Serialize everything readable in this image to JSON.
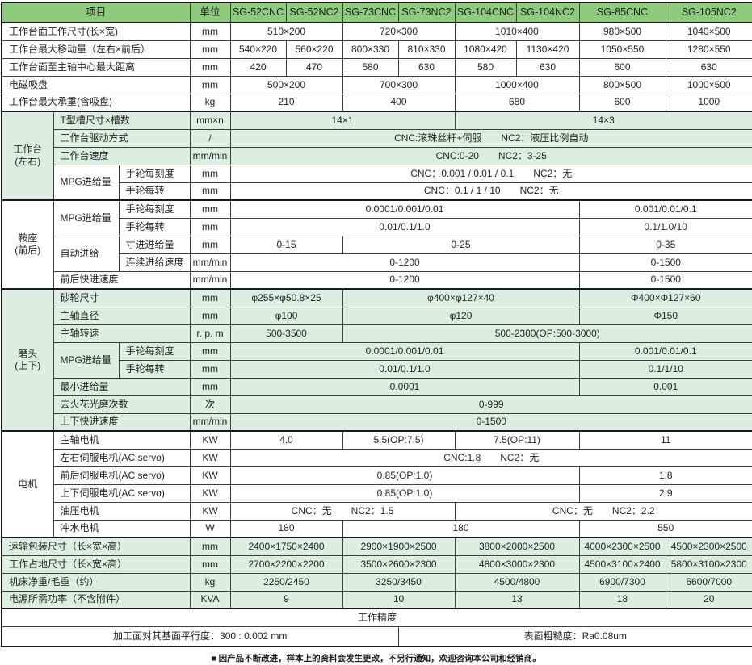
{
  "colors": {
    "header_green": "#8ecb7d",
    "row_light_green": "#dceee3",
    "row_white": "#ffffff",
    "border_dark": "#3f3f3f",
    "border_heavy": "#181818"
  },
  "table": {
    "header": [
      {
        "t": "项目",
        "cs": 3
      },
      {
        "t": "单位"
      },
      {
        "t": "SG-52CNC"
      },
      {
        "t": "SG-52NC2"
      },
      {
        "t": "SG-73CNC"
      },
      {
        "t": "SG-73NC2"
      },
      {
        "t": "SG-104CNC"
      },
      {
        "t": "SG-104NC2"
      },
      {
        "t": "SG-85CNC"
      },
      {
        "t": "SG-105NC2"
      }
    ],
    "rows": [
      {
        "bg": "w",
        "cells": [
          {
            "t": "工作台面工作尺寸(长×宽)",
            "cs": 3,
            "al": "l"
          },
          {
            "t": "mm",
            "n": "unit-cell"
          },
          {
            "t": "510×200",
            "cs": 2
          },
          {
            "t": "720×300",
            "cs": 2
          },
          {
            "t": "1010×400",
            "cs": 2
          },
          {
            "t": "980×500"
          },
          {
            "t": "1040×500"
          }
        ]
      },
      {
        "bg": "w",
        "cells": [
          {
            "t": "工作台最大移动量（左右×前后）",
            "cs": 3,
            "al": "l"
          },
          {
            "t": "mm",
            "n": "unit-cell"
          },
          {
            "t": "540×220"
          },
          {
            "t": "560×220"
          },
          {
            "t": "800×330"
          },
          {
            "t": "810×330"
          },
          {
            "t": "1080×420"
          },
          {
            "t": "1130×420"
          },
          {
            "t": "1050×550"
          },
          {
            "t": "1280×550"
          }
        ]
      },
      {
        "bg": "w",
        "cells": [
          {
            "t": "工作台面至主轴中心最大距离",
            "cs": 3,
            "al": "l"
          },
          {
            "t": "mm",
            "n": "unit-cell"
          },
          {
            "t": "420"
          },
          {
            "t": "470"
          },
          {
            "t": "580"
          },
          {
            "t": "630"
          },
          {
            "t": "580"
          },
          {
            "t": "630"
          },
          {
            "t": "600"
          },
          {
            "t": "630"
          }
        ]
      },
      {
        "bg": "w",
        "cells": [
          {
            "t": "电磁吸盘",
            "cs": 3,
            "al": "l"
          },
          {
            "t": "mm",
            "n": "unit-cell"
          },
          {
            "t": "500×200",
            "cs": 2
          },
          {
            "t": "700×300",
            "cs": 2
          },
          {
            "t": "1000×400",
            "cs": 2
          },
          {
            "t": "800×500"
          },
          {
            "t": "1000×500"
          }
        ]
      },
      {
        "bg": "w",
        "cells": [
          {
            "t": "工作台最大承重(含吸盘)",
            "cs": 3,
            "al": "l"
          },
          {
            "t": "kg",
            "n": "unit-cell"
          },
          {
            "t": "210",
            "cs": 2
          },
          {
            "t": "400",
            "cs": 2
          },
          {
            "t": "680",
            "cs": 2
          },
          {
            "t": "600"
          },
          {
            "t": "1000"
          }
        ]
      },
      {
        "bg": "g",
        "bt": 1,
        "cells": [
          {
            "t": "工作台\n(左右)",
            "rs": 5,
            "bg": "g",
            "n": "group-label"
          },
          {
            "t": "T型槽尺寸×槽数",
            "cs": 2,
            "al": "l"
          },
          {
            "t": "mm×n",
            "n": "unit-cell"
          },
          {
            "t": "14×1",
            "cs": 4
          },
          {
            "t": "14×3",
            "cs": 4
          }
        ]
      },
      {
        "bg": "g",
        "cells": [
          {
            "t": "工作台驱动方式",
            "cs": 2,
            "al": "l"
          },
          {
            "t": "/",
            "n": "unit-cell"
          },
          {
            "t": "CNC:滚珠丝杆+伺服　　NC2：液压比例自动",
            "cs": 8
          }
        ]
      },
      {
        "bg": "g",
        "cells": [
          {
            "t": "工作台速度",
            "cs": 2,
            "al": "l"
          },
          {
            "t": "mm/min",
            "n": "unit-cell"
          },
          {
            "t": "CNC:0-20　　NC2：3-25",
            "cs": 8
          }
        ]
      },
      {
        "bg": "w",
        "cells": [
          {
            "t": "MPG进给量",
            "rs": 2,
            "al": "l"
          },
          {
            "t": "手轮每刻度",
            "al": "l"
          },
          {
            "t": "mm",
            "n": "unit-cell"
          },
          {
            "t": "CNC：0.001 / 0.01 / 0.1　　NC2：无",
            "cs": 8
          }
        ]
      },
      {
        "bg": "w",
        "cells": [
          {
            "t": "手轮每转",
            "al": "l"
          },
          {
            "t": "mm",
            "n": "unit-cell"
          },
          {
            "t": "CNC：0.1 / 1 / 10　　NC2：无",
            "cs": 8
          }
        ]
      },
      {
        "bg": "w",
        "bt": 1,
        "cells": [
          {
            "t": "鞍座\n(前后)",
            "rs": 5,
            "bg": "w",
            "n": "group-label"
          },
          {
            "t": "MPG进给量",
            "rs": 2,
            "al": "l"
          },
          {
            "t": "手轮每刻度",
            "al": "l"
          },
          {
            "t": "mm",
            "n": "unit-cell"
          },
          {
            "t": "0.0001/0.001/0.01",
            "cs": 6
          },
          {
            "t": "0.001/0.01/0.1",
            "cs": 2
          }
        ]
      },
      {
        "bg": "w",
        "cells": [
          {
            "t": "手轮每转",
            "al": "l"
          },
          {
            "t": "mm",
            "n": "unit-cell"
          },
          {
            "t": "0.01/0.1/1.0",
            "cs": 6
          },
          {
            "t": "0.1/1.0/10",
            "cs": 2
          }
        ]
      },
      {
        "bg": "w",
        "cells": [
          {
            "t": "自动进给",
            "rs": 2,
            "al": "l"
          },
          {
            "t": "寸进进给量",
            "al": "l"
          },
          {
            "t": "mm",
            "n": "unit-cell"
          },
          {
            "t": "0-15",
            "cs": 2
          },
          {
            "t": "0-25",
            "cs": 4
          },
          {
            "t": "0-35",
            "cs": 2
          }
        ]
      },
      {
        "bg": "w",
        "cells": [
          {
            "t": "连续进给速度",
            "al": "l"
          },
          {
            "t": "mm/min",
            "n": "unit-cell"
          },
          {
            "t": "0-1200",
            "cs": 6
          },
          {
            "t": "0-1500",
            "cs": 2
          }
        ]
      },
      {
        "bg": "w",
        "cells": [
          {
            "t": "前后快进速度",
            "cs": 2,
            "al": "l"
          },
          {
            "t": "mm/min",
            "n": "unit-cell"
          },
          {
            "t": "0-1200",
            "cs": 6
          },
          {
            "t": "0-1500",
            "cs": 2
          }
        ]
      },
      {
        "bg": "g",
        "bt": 1,
        "cells": [
          {
            "t": "磨头\n(上下)",
            "rs": 8,
            "bg": "g",
            "n": "group-label"
          },
          {
            "t": "砂轮尺寸",
            "cs": 2,
            "al": "l"
          },
          {
            "t": "mm",
            "n": "unit-cell"
          },
          {
            "t": "φ255×φ50.8×25",
            "cs": 2
          },
          {
            "t": "φ400×φ127×40",
            "cs": 4
          },
          {
            "t": "Φ400×Φ127×60",
            "cs": 2
          }
        ]
      },
      {
        "bg": "g",
        "cells": [
          {
            "t": "主轴直径",
            "cs": 2,
            "al": "l"
          },
          {
            "t": "mm",
            "n": "unit-cell"
          },
          {
            "t": "φ100",
            "cs": 2
          },
          {
            "t": "φ120",
            "cs": 4
          },
          {
            "t": "Φ150",
            "cs": 2
          }
        ]
      },
      {
        "bg": "g",
        "cells": [
          {
            "t": "主轴转速",
            "cs": 2,
            "al": "l"
          },
          {
            "t": "r. p. m",
            "n": "unit-cell"
          },
          {
            "t": "500-3500",
            "cs": 2
          },
          {
            "t": "500-2300(OP:500-3000)",
            "cs": 6
          }
        ]
      },
      {
        "bg": "g",
        "cells": [
          {
            "t": "MPG进给量",
            "rs": 2,
            "al": "l"
          },
          {
            "t": "手轮每刻度",
            "al": "l"
          },
          {
            "t": "mm",
            "n": "unit-cell"
          },
          {
            "t": "0.0001/0.001/0.01",
            "cs": 6
          },
          {
            "t": "0.001/0.01/0.1",
            "cs": 2
          }
        ]
      },
      {
        "bg": "g",
        "cells": [
          {
            "t": "手轮每转",
            "al": "l"
          },
          {
            "t": "mm",
            "n": "unit-cell"
          },
          {
            "t": "0.01/0.1/1.0",
            "cs": 6
          },
          {
            "t": "0.1/1/10",
            "cs": 2
          }
        ]
      },
      {
        "bg": "g",
        "cells": [
          {
            "t": "最小进给量",
            "cs": 2,
            "al": "l"
          },
          {
            "t": "mm",
            "n": "unit-cell"
          },
          {
            "t": "0.0001",
            "cs": 6
          },
          {
            "t": "0.001",
            "cs": 2
          }
        ]
      },
      {
        "bg": "g",
        "cells": [
          {
            "t": "去火花光磨次数",
            "cs": 2,
            "al": "l"
          },
          {
            "t": "次",
            "n": "unit-cell"
          },
          {
            "t": "0-999",
            "cs": 8
          }
        ]
      },
      {
        "bg": "g",
        "cells": [
          {
            "t": "上下快进速度",
            "cs": 2,
            "al": "l"
          },
          {
            "t": "mm/min",
            "n": "unit-cell"
          },
          {
            "t": "0-1500",
            "cs": 8
          }
        ]
      },
      {
        "bg": "w",
        "bt": 1,
        "cells": [
          {
            "t": "电机",
            "rs": 6,
            "bg": "w",
            "n": "group-label"
          },
          {
            "t": "主轴电机",
            "cs": 2,
            "al": "l"
          },
          {
            "t": "KW",
            "n": "unit-cell"
          },
          {
            "t": "4.0",
            "cs": 2
          },
          {
            "t": "5.5(OP:7.5)",
            "cs": 2
          },
          {
            "t": "7.5(OP:11)",
            "cs": 2
          },
          {
            "t": "11",
            "cs": 2
          }
        ]
      },
      {
        "bg": "w",
        "cells": [
          {
            "t": "左右伺服电机(AC servo)",
            "cs": 2,
            "al": "l"
          },
          {
            "t": "KW",
            "n": "unit-cell"
          },
          {
            "t": "CNC:1.8　　NC2：无",
            "cs": 8
          }
        ]
      },
      {
        "bg": "w",
        "cells": [
          {
            "t": "前后伺服电机(AC servo)",
            "cs": 2,
            "al": "l"
          },
          {
            "t": "KW",
            "n": "unit-cell"
          },
          {
            "t": "0.85(OP:1.0)",
            "cs": 6
          },
          {
            "t": "1.8",
            "cs": 2
          }
        ]
      },
      {
        "bg": "w",
        "cells": [
          {
            "t": "上下伺服电机(AC servo)",
            "cs": 2,
            "al": "l"
          },
          {
            "t": "KW",
            "n": "unit-cell"
          },
          {
            "t": "0.85(OP:1.0)",
            "cs": 6
          },
          {
            "t": "2.9",
            "cs": 2
          }
        ]
      },
      {
        "bg": "w",
        "cells": [
          {
            "t": "油压电机",
            "cs": 2,
            "al": "l"
          },
          {
            "t": "KW",
            "n": "unit-cell"
          },
          {
            "t": "CNC：无　　NC2：1.5",
            "cs": 4
          },
          {
            "t": "CNC：无　　NC2：2.2",
            "cs": 4
          }
        ]
      },
      {
        "bg": "w",
        "cells": [
          {
            "t": "冲水电机",
            "cs": 2,
            "al": "l"
          },
          {
            "t": "W",
            "n": "unit-cell"
          },
          {
            "t": "180",
            "cs": 2
          },
          {
            "t": "180",
            "cs": 4
          },
          {
            "t": "550",
            "cs": 2
          }
        ]
      },
      {
        "bg": "g",
        "bt": 1,
        "cells": [
          {
            "t": "运输包装尺寸（长×宽×高）",
            "cs": 3,
            "al": "l"
          },
          {
            "t": "mm",
            "n": "unit-cell"
          },
          {
            "t": "2400×1750×2400",
            "cs": 2
          },
          {
            "t": "2900×1900×2500",
            "cs": 2
          },
          {
            "t": "3800×2000×2500",
            "cs": 2
          },
          {
            "t": "4000×2300×2500"
          },
          {
            "t": "4500×2300×2500"
          }
        ]
      },
      {
        "bg": "g",
        "cells": [
          {
            "t": "工作占地尺寸（长×宽×高）",
            "cs": 3,
            "al": "l"
          },
          {
            "t": "mm",
            "n": "unit-cell"
          },
          {
            "t": "2700×2200×2200",
            "cs": 2
          },
          {
            "t": "3500×2600×2300",
            "cs": 2
          },
          {
            "t": "4800×3000×2300",
            "cs": 2
          },
          {
            "t": "4500×3100×2400"
          },
          {
            "t": "5800×3100×2300"
          }
        ]
      },
      {
        "bg": "g",
        "cells": [
          {
            "t": "机床净重/毛重（约）",
            "cs": 3,
            "al": "l"
          },
          {
            "t": "kg",
            "n": "unit-cell"
          },
          {
            "t": "2250/2450",
            "cs": 2
          },
          {
            "t": "3250/3450",
            "cs": 2
          },
          {
            "t": "4500/4800",
            "cs": 2
          },
          {
            "t": "6900/7300"
          },
          {
            "t": "6600/7000"
          }
        ]
      },
      {
        "bg": "g",
        "cells": [
          {
            "t": "电源所需功率（不含附件）",
            "cs": 3,
            "al": "l"
          },
          {
            "t": "KVA",
            "n": "unit-cell"
          },
          {
            "t": "9",
            "cs": 2
          },
          {
            "t": "10",
            "cs": 2
          },
          {
            "t": "13",
            "cs": 2
          },
          {
            "t": "18"
          },
          {
            "t": "20"
          }
        ]
      },
      {
        "bg": "w",
        "bt": 1,
        "cells": [
          {
            "t": "工作精度",
            "cs": 12,
            "n": "accuracy-title"
          }
        ]
      },
      {
        "bg": "w",
        "h25": 1,
        "cells": [
          {
            "t": "加工面对其基面平行度：300 : 0.002 mm",
            "cs": 7,
            "n": "accuracy-parallelism"
          },
          {
            "t": "表面粗糙度：Ra0.08um",
            "cs": 5,
            "n": "accuracy-roughness"
          }
        ]
      }
    ]
  },
  "footer_note": "■ 因产品不断改进，样本上的资料会发生更改，不另行通知，欢迎咨询本公司和经销商。"
}
